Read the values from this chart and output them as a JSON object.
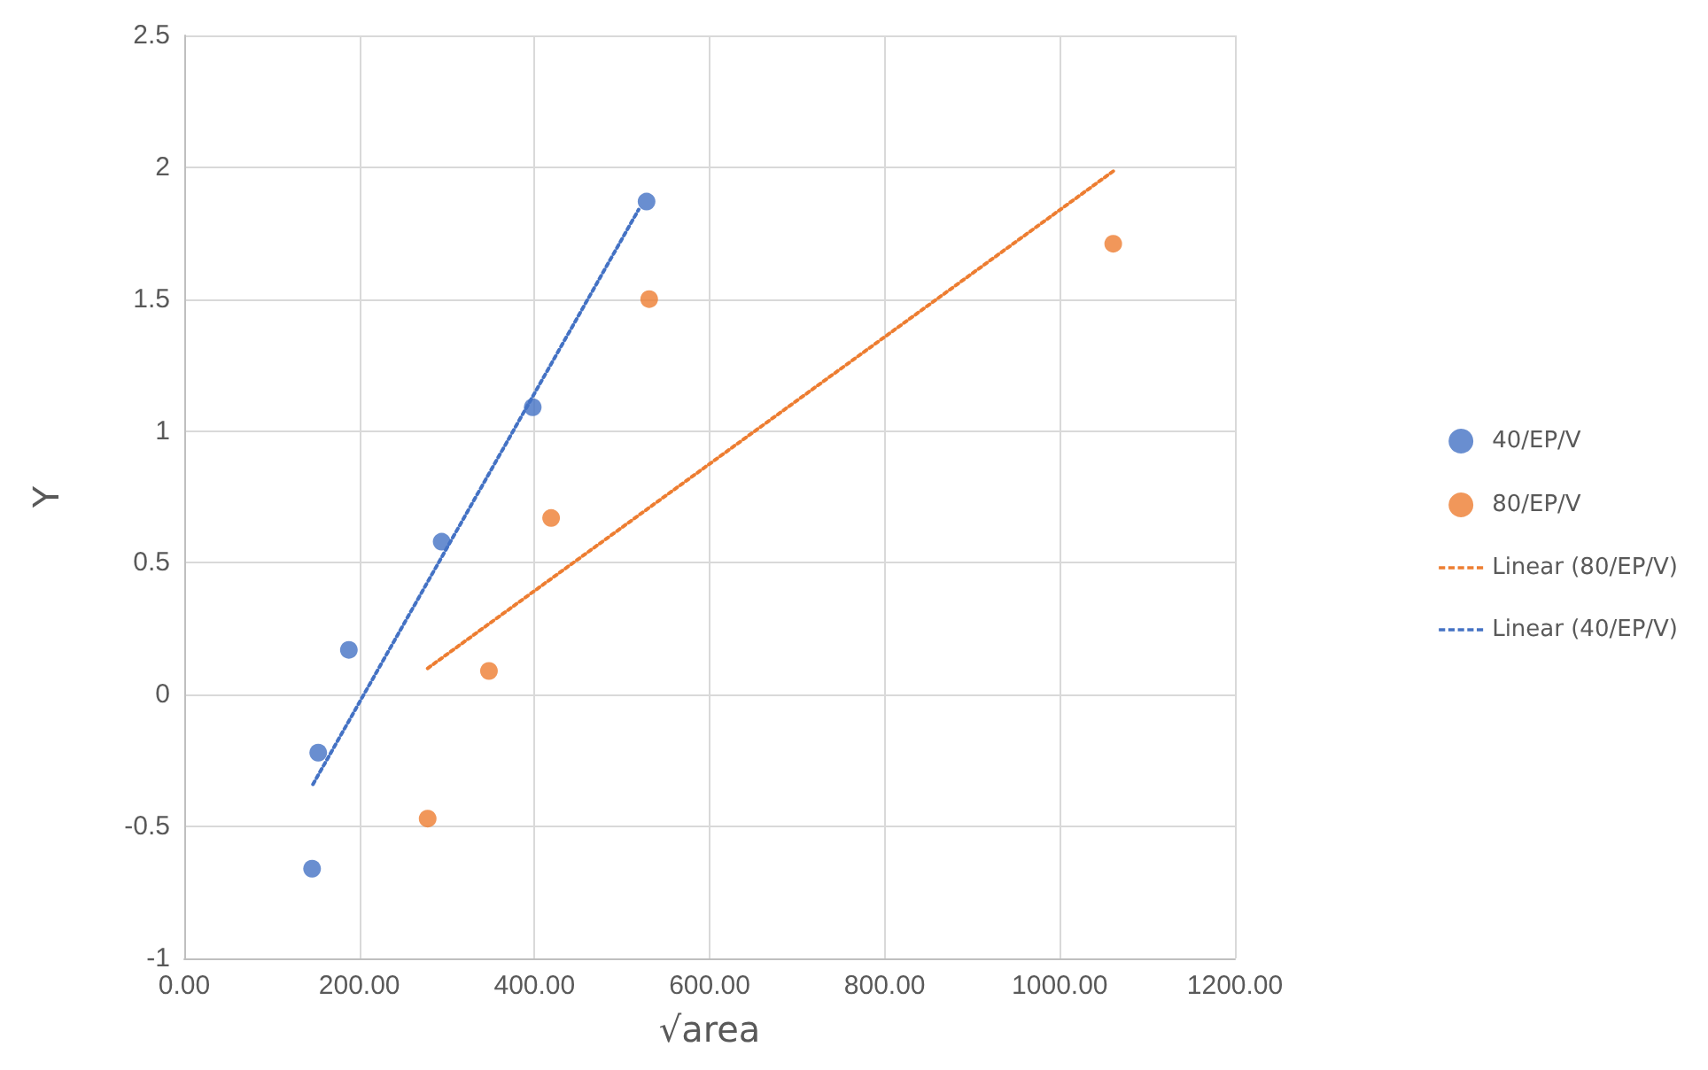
{
  "chart_data": {
    "type": "scatter",
    "xlabel": "√area",
    "ylabel": "Y",
    "xlim": [
      0,
      1200
    ],
    "xticks": [
      {
        "value": 0,
        "label": "0.00"
      },
      {
        "value": 200,
        "label": "200.00"
      },
      {
        "value": 400,
        "label": "400.00"
      },
      {
        "value": 600,
        "label": "600.00"
      },
      {
        "value": 800,
        "label": "800.00"
      },
      {
        "value": 1000,
        "label": "1000.00"
      },
      {
        "value": 1200,
        "label": "1200.00"
      }
    ],
    "ylim": [
      -1,
      2.5
    ],
    "yticks": [
      -1,
      -0.5,
      0,
      0.5,
      1,
      1.5,
      2,
      2.5
    ],
    "grid": true,
    "legend": "right",
    "marker": "circle",
    "series": [
      {
        "name": "40/EP/V",
        "color": "#4472c4",
        "x": [
          146,
          153,
          188,
          294,
          398,
          528
        ],
        "values": [
          -0.66,
          -0.22,
          0.17,
          0.58,
          1.09,
          1.87
        ]
      },
      {
        "name": "80/EP/V",
        "color": "#ed7d31",
        "x": [
          278,
          348,
          419,
          531,
          1061
        ],
        "values": [
          -0.47,
          0.09,
          0.67,
          1.5,
          1.71
        ]
      },
      {
        "name": "Linear (80/EP/V)",
        "type": "line",
        "line_style": "dotted",
        "marker": "none",
        "color": "#ed7d31",
        "x": [
          278,
          1063
        ],
        "values": [
          0.1,
          1.99
        ]
      },
      {
        "name": "Linear (40/EP/V)",
        "type": "line",
        "line_style": "dotted",
        "marker": "none",
        "color": "#4472c4",
        "x": [
          147,
          519
        ],
        "values": [
          -0.34,
          1.84
        ]
      }
    ]
  }
}
